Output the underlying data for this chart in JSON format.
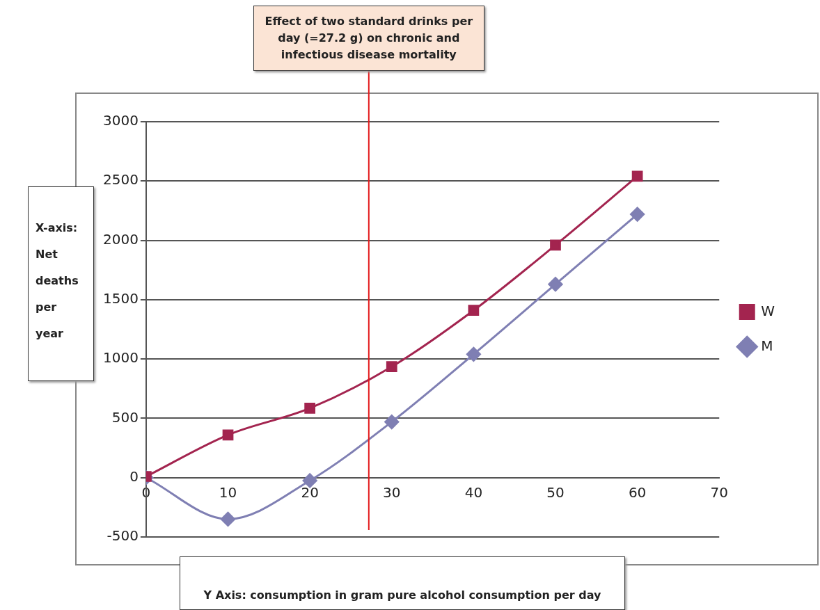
{
  "chart_data": {
    "type": "line",
    "xlabel": "Y Axis: consumption in gram pure alcohol consumption per day",
    "ylabel": "X-axis: Net deaths per year",
    "x": [
      0,
      10,
      20,
      30,
      40,
      50,
      60
    ],
    "series": [
      {
        "name": "M",
        "color": "#7f7fb3",
        "marker": "diamond",
        "values": [
          0,
          -350,
          -25,
          470,
          1040,
          1630,
          2220
        ]
      },
      {
        "name": "W",
        "color": "#a3244f",
        "marker": "square",
        "values": [
          10,
          360,
          585,
          935,
          1410,
          1960,
          2540
        ]
      }
    ],
    "xlim": [
      0,
      70
    ],
    "xticks": [
      0,
      10,
      20,
      30,
      40,
      50,
      60,
      70
    ],
    "ylim": [
      -500,
      3000
    ],
    "yticks": [
      -500,
      0,
      500,
      1000,
      1500,
      2000,
      2500,
      3000
    ],
    "grid": "y",
    "legend": "right",
    "ref_lines": [
      {
        "axis": "x",
        "value": 27.2,
        "label": "Effect of two standard drinks per day (=27.2 g) on chronic and infectious disease mortality",
        "color": "#e31a1c"
      }
    ]
  }
}
